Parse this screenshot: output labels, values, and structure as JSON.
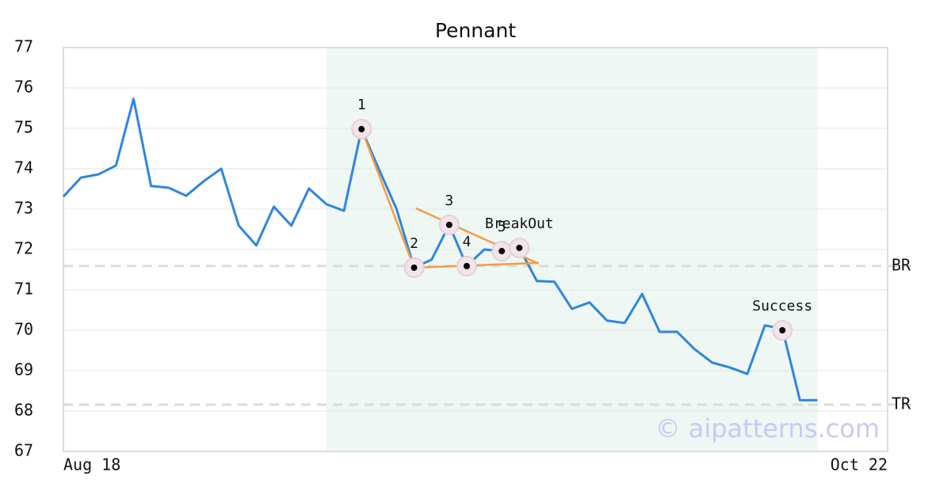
{
  "chart_data": {
    "type": "line",
    "title": "Pennant",
    "x": [
      0,
      1,
      2,
      3,
      4,
      5,
      6,
      7,
      8,
      9,
      10,
      11,
      12,
      13,
      14,
      15,
      16,
      17,
      18,
      19,
      20,
      21,
      22,
      23,
      24,
      25,
      26,
      27,
      28,
      29,
      30,
      31,
      32,
      33,
      34,
      35,
      36,
      37,
      38,
      39,
      40,
      41,
      42,
      43
    ],
    "values": [
      73.31,
      73.78,
      73.86,
      74.08,
      75.73,
      73.57,
      73.53,
      73.33,
      73.69,
      74.0,
      72.59,
      72.1,
      73.06,
      72.59,
      73.51,
      73.12,
      72.96,
      74.98,
      73.98,
      73.0,
      71.55,
      71.75,
      72.61,
      71.59,
      72.0,
      71.96,
      72.04,
      71.22,
      71.2,
      70.53,
      70.69,
      70.24,
      70.18,
      70.9,
      69.96,
      69.96,
      69.53,
      69.2,
      69.08,
      68.92,
      70.12,
      70.04,
      68.27,
      68.27
    ],
    "color": "#2e86de",
    "xlim": [
      0,
      47
    ],
    "xticks": [
      {
        "value": 0,
        "label": "Aug 18"
      },
      {
        "value": 47,
        "label": "Oct 22"
      }
    ],
    "ylim": [
      67,
      77
    ],
    "yticks": [
      67,
      68,
      69,
      70,
      71,
      72,
      73,
      74,
      75,
      76,
      77
    ],
    "grid": true,
    "highlight": {
      "xrange": [
        15,
        43
      ],
      "color": "#eef7f3"
    },
    "trendline_color": "#f39c45",
    "trendlines": [
      {
        "x": [
          17,
          20
        ],
        "y": [
          74.98,
          71.55
        ]
      },
      {
        "x": [
          20,
          27.1
        ],
        "y": [
          71.55,
          71.67
        ]
      },
      {
        "x": [
          20.1,
          27.1
        ],
        "y": [
          73.02,
          71.65
        ]
      }
    ],
    "points": [
      {
        "label": "1",
        "x": 17,
        "y": 74.98
      },
      {
        "label": "2",
        "x": 20,
        "y": 71.55
      },
      {
        "label": "3",
        "x": 22,
        "y": 72.61
      },
      {
        "label": "4",
        "x": 23,
        "y": 71.59
      },
      {
        "label": "5",
        "x": 25,
        "y": 71.96
      },
      {
        "label": "BreakOut",
        "x": 26,
        "y": 72.04
      },
      {
        "label": "Success",
        "x": 41,
        "y": 70.0
      }
    ],
    "hlines": [
      {
        "label": "BR",
        "y": 71.59
      },
      {
        "label": "TR",
        "y": 68.16
      }
    ],
    "watermark": "© aipatterns.com"
  }
}
